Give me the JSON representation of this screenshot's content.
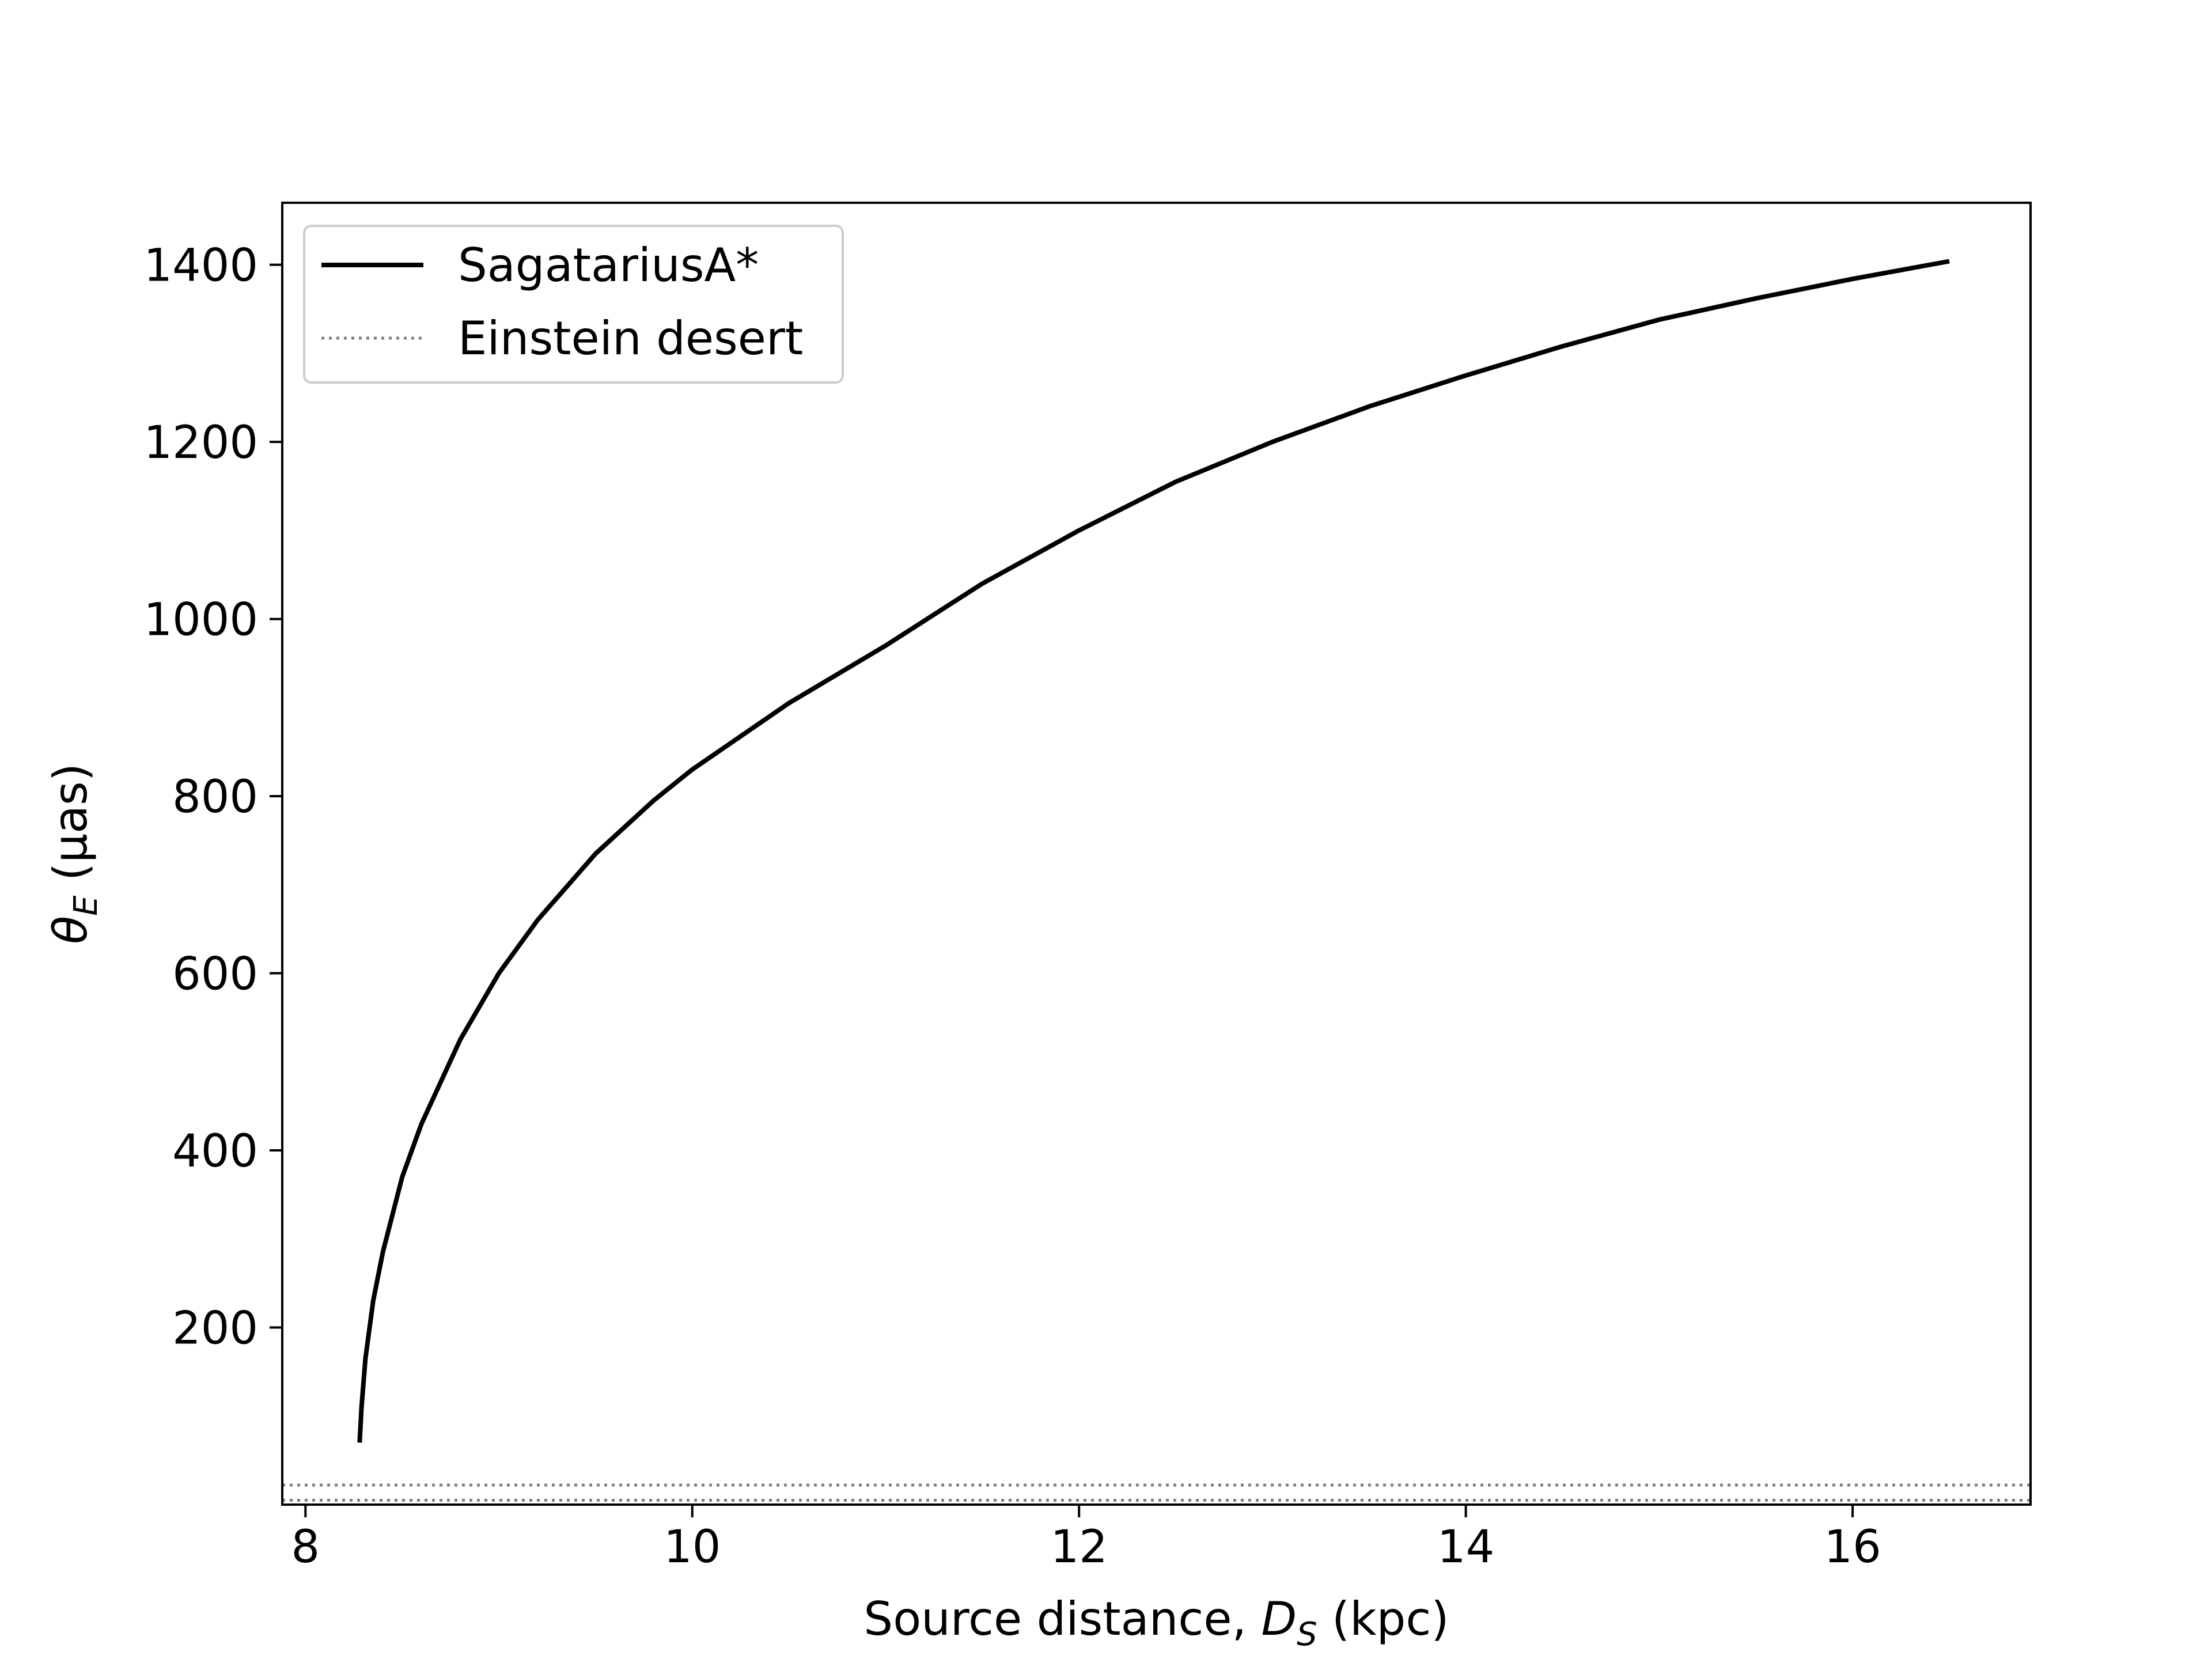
{
  "chart_data": {
    "type": "line",
    "xlabel": "Source distance, D_S (kpc)",
    "xlabel_parts": {
      "before": "Source distance, ",
      "var": "D",
      "sub": "S",
      "after": " (kpc)"
    },
    "ylabel": "θ_E (μas)",
    "ylabel_parts": {
      "var": "θ",
      "sub": "E",
      "after": " (μas)",
      "mu": "μ",
      "as": "as)",
      "open": "("
    },
    "xlim": [
      7.88,
      16.92
    ],
    "ylim": [
      0,
      1470
    ],
    "x_ticks": [
      8,
      10,
      12,
      14,
      16
    ],
    "y_ticks": [
      200,
      400,
      600,
      800,
      1000,
      1200,
      1400
    ],
    "legend": {
      "position": "upper-left",
      "entries": [
        {
          "label": "SagatariusA*",
          "style": "solid",
          "color": "#000000"
        },
        {
          "label": "Einstein desert",
          "style": "dotted",
          "color": "#808080"
        }
      ]
    },
    "series": [
      {
        "name": "SagatariusA*",
        "color": "#000000",
        "style": "solid",
        "x": [
          8.28,
          8.29,
          8.31,
          8.35,
          8.4,
          8.5,
          8.6,
          8.8,
          9.0,
          9.2,
          9.5,
          9.8,
          10.0,
          10.5,
          11.0,
          11.5,
          12.0,
          12.5,
          13.0,
          13.5,
          14.0,
          14.5,
          15.0,
          15.5,
          16.0,
          16.5
        ],
        "y": [
          70,
          110,
          165,
          230,
          285,
          370,
          430,
          525,
          600,
          660,
          735,
          795,
          830,
          905,
          970,
          1040,
          1100,
          1155,
          1200,
          1240,
          1275,
          1308,
          1338,
          1362,
          1384,
          1404
        ]
      }
    ],
    "hlines": [
      {
        "name": "Einstein desert",
        "y": 5,
        "color": "#808080",
        "style": "dotted"
      },
      {
        "name": "Einstein desert",
        "y": 22,
        "color": "#808080",
        "style": "dotted"
      }
    ],
    "grid": false
  }
}
